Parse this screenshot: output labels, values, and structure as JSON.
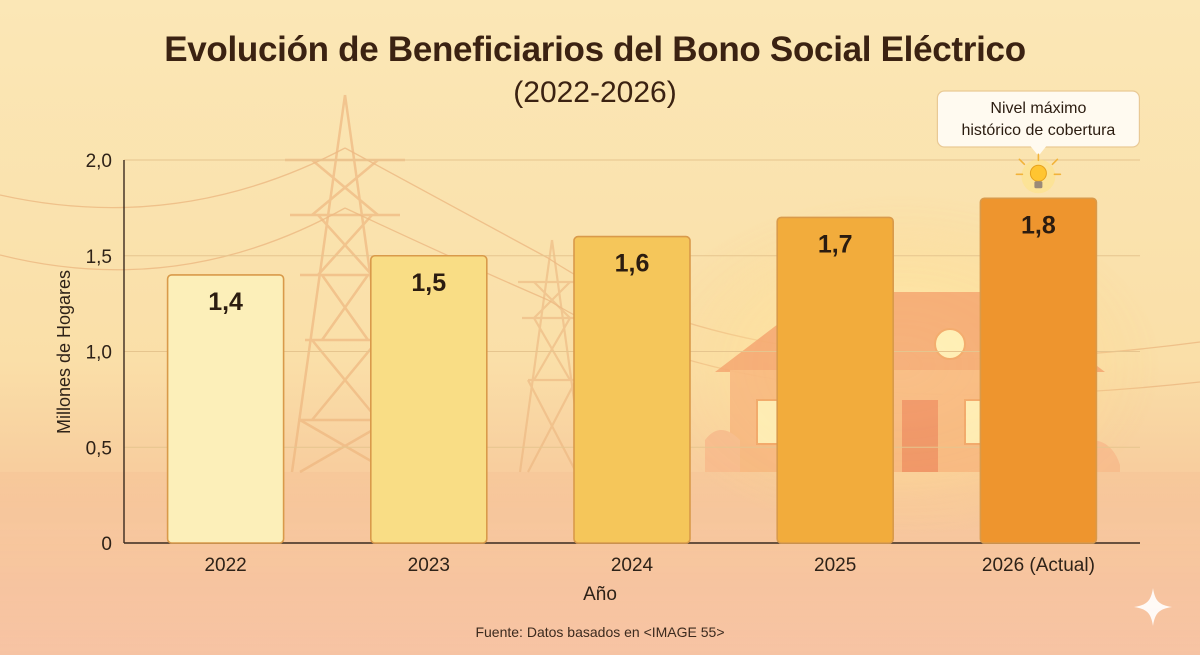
{
  "title": "Evolución de Beneficiarios del Bono Social Eléctrico",
  "subtitle": "(2022-2026)",
  "source": "Fuente: Datos basados en <IMAGE 55>",
  "chart_data": {
    "type": "bar",
    "title": "Evolución de Beneficiarios del Bono Social Eléctrico (2022-2026)",
    "xlabel": "Año",
    "ylabel": "Millones de Hogares",
    "categories": [
      "2022",
      "2023",
      "2024",
      "2025",
      "2026 (Actual)"
    ],
    "values": [
      1.4,
      1.5,
      1.6,
      1.7,
      1.8
    ],
    "value_labels": [
      "1,4",
      "1,5",
      "1,6",
      "1,7",
      "1,8"
    ],
    "ylim": [
      0,
      2.0
    ],
    "yticks": [
      0,
      0.5,
      1.0,
      1.5,
      2.0
    ],
    "ytick_labels": [
      "0",
      "0,5",
      "1,0",
      "1,5",
      "2,0"
    ],
    "grid": true,
    "bar_colors": [
      "#fcefb9",
      "#f9dd85",
      "#f5c65a",
      "#f2ac3c",
      "#ee952e"
    ],
    "annotation": {
      "text_line1": "Nivel máximo",
      "text_line2": "histórico de cobertura",
      "target_category": "2026 (Actual)",
      "icon": "lightbulb-icon"
    }
  }
}
